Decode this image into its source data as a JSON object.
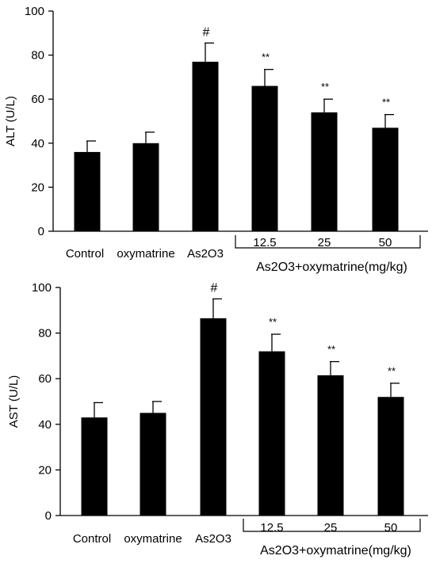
{
  "chart_data": [
    {
      "type": "bar",
      "title": "",
      "xlabel": "",
      "ylabel": "ALT (U/L)",
      "ylim": [
        0,
        100
      ],
      "yticks": [
        0,
        20,
        40,
        60,
        80,
        100
      ],
      "categories": [
        "Control",
        "oxymatrine",
        "As2O3",
        "12.5",
        "25",
        "50"
      ],
      "values": [
        36,
        40,
        77,
        66,
        54,
        47
      ],
      "errors": [
        5,
        5,
        8.5,
        7.5,
        6,
        6
      ],
      "annotations": [
        "",
        "",
        "#",
        "**",
        "**",
        "**"
      ],
      "group_label": "As2O3+oxymatrine(mg/kg)",
      "bar_color": "#000000",
      "grid": false,
      "legend": "none"
    },
    {
      "type": "bar",
      "title": "",
      "xlabel": "",
      "ylabel": "AST (U/L)",
      "ylim": [
        0,
        100
      ],
      "yticks": [
        0,
        20,
        40,
        60,
        80,
        100
      ],
      "categories": [
        "Control",
        "oxymatrine",
        "As2O3",
        "12.5",
        "25",
        "50"
      ],
      "values": [
        43,
        45,
        86.5,
        72,
        61.5,
        52
      ],
      "errors": [
        6.5,
        5,
        8.5,
        7.5,
        6,
        6
      ],
      "annotations": [
        "",
        "",
        "#",
        "**",
        "**",
        "**"
      ],
      "group_label": "As2O3+oxymatrine(mg/kg)",
      "bar_color": "#000000",
      "grid": false,
      "legend": "none"
    }
  ]
}
